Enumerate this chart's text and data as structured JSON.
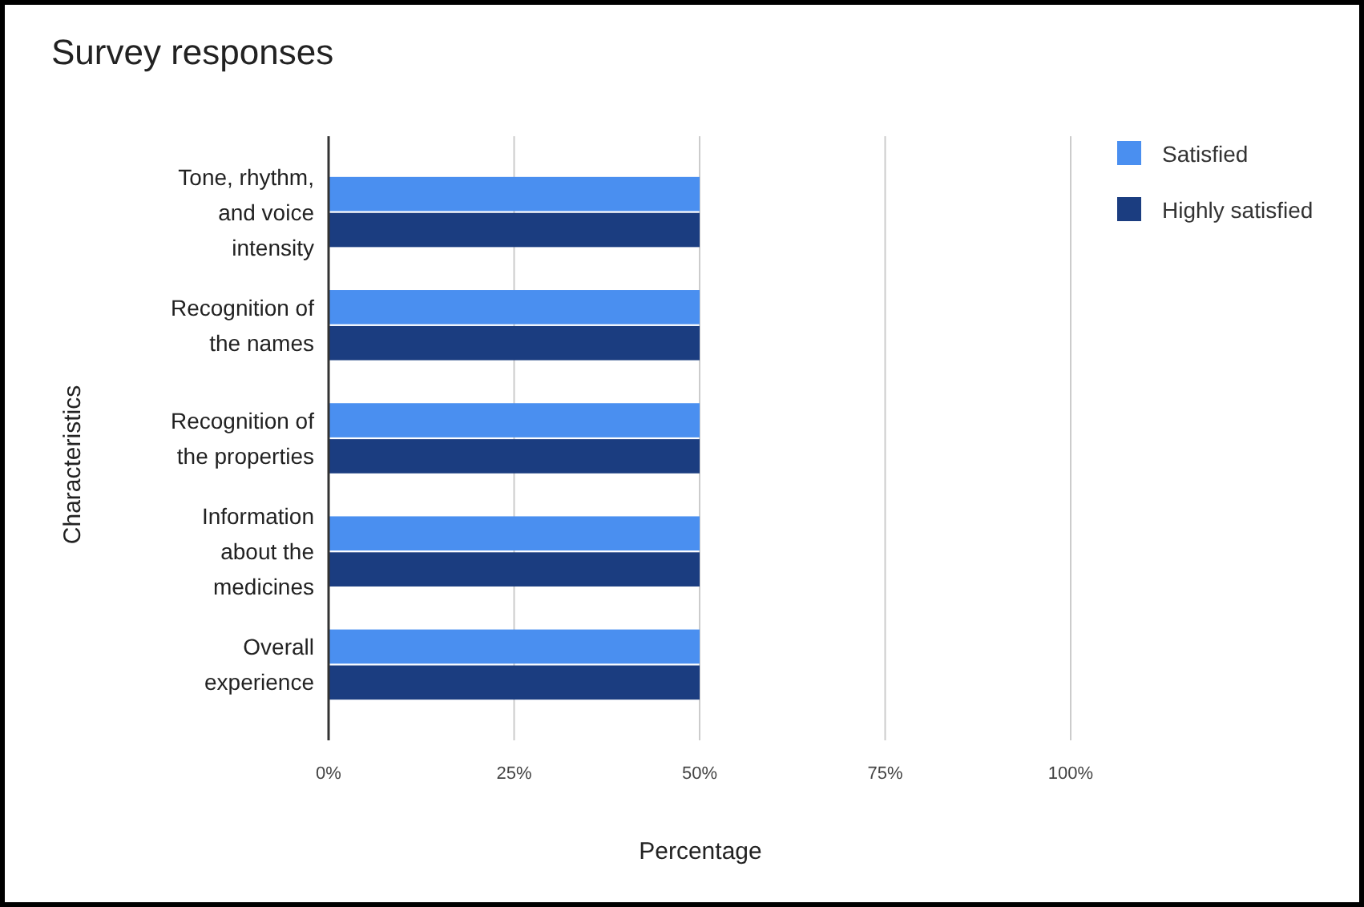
{
  "chart_data": {
    "type": "bar",
    "orientation": "horizontal",
    "title": "Survey responses",
    "xlabel": "Percentage",
    "ylabel": "Characteristics",
    "categories": [
      "Tone, rhythm, and voice intensity",
      "Recognition of the names",
      "Recognition of the properties",
      "Information about the medicines",
      "Overall experience"
    ],
    "series": [
      {
        "name": "Satisfied",
        "color": "#4a8ff0",
        "values": [
          50,
          50,
          50,
          50,
          50
        ]
      },
      {
        "name": "Highly satisfied",
        "color": "#1b3d80",
        "values": [
          50,
          50,
          50,
          50,
          50
        ]
      }
    ],
    "xlim": [
      0,
      100
    ],
    "xticks": [
      {
        "value": 0,
        "label": "0%"
      },
      {
        "value": 25,
        "label": "25%"
      },
      {
        "value": 50,
        "label": "50%"
      },
      {
        "value": 75,
        "label": "75%"
      },
      {
        "value": 100,
        "label": "100%"
      }
    ],
    "grid": "x",
    "legend": "top right"
  }
}
